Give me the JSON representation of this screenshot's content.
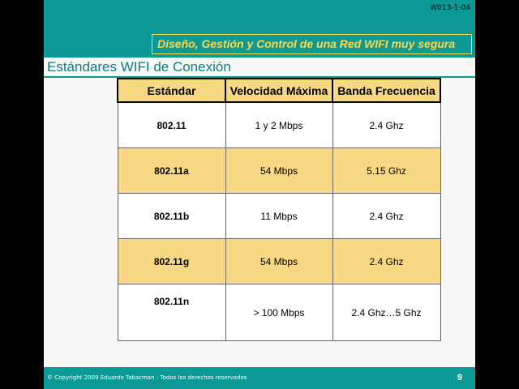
{
  "slide": {
    "code": "W013-1-04",
    "banner": "Diseño, Gestión y Control de una Red WIFI muy segura",
    "title": "Estándares WIFI de Conexión",
    "footer": {
      "copyright": "© Copyright 2009 Eduardo Tabacman - Todos los derechos reservados",
      "page_number": "9"
    }
  },
  "table": {
    "headers": [
      "Estándar",
      "Velocidad Máxima",
      "Banda Frecuencia"
    ],
    "rows": [
      {
        "standard": "802.11",
        "speed": "1 y 2 Mbps",
        "band": "2.4 Ghz"
      },
      {
        "standard": "802.11a",
        "speed": "54 Mbps",
        "band": "5.15 Ghz"
      },
      {
        "standard": "802.11b",
        "speed": "11 Mbps",
        "band": "2.4 Ghz"
      },
      {
        "standard": "802.11g",
        "speed": "54 Mbps",
        "band": "2.4 Ghz"
      },
      {
        "standard": "802.11n",
        "speed": "> 100 Mbps",
        "band": "2.4 Ghz…5 Ghz"
      }
    ]
  },
  "colors": {
    "teal": "#0d9a96",
    "title_teal": "#0a7f80",
    "banner_yellow": "#ffd84a",
    "row_highlight": "#f8d983",
    "background": "#f7f7f7"
  }
}
